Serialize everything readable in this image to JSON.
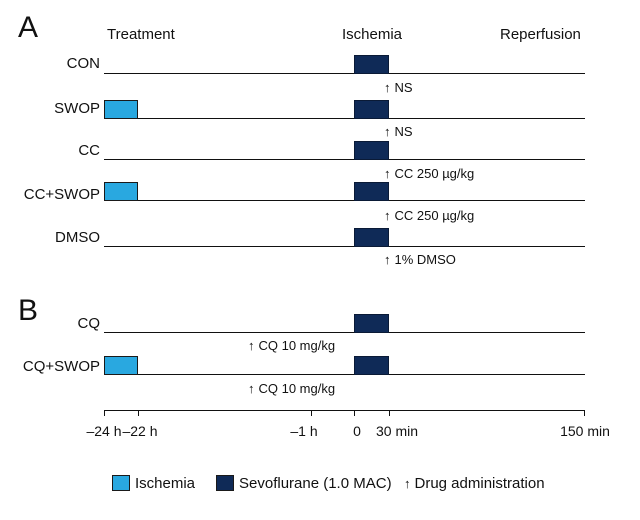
{
  "panels": {
    "a": "A",
    "b": "B"
  },
  "phases": {
    "treatment": "Treatment",
    "ischemia": "Ischemia",
    "reperfusion": "Reperfusion"
  },
  "rows": [
    {
      "label": "CON",
      "drug": "NS"
    },
    {
      "label": "SWOP",
      "drug": "NS"
    },
    {
      "label": "CC",
      "drug": "CC 250 µg/kg"
    },
    {
      "label": "CC+SWOP",
      "drug": "CC 250 µg/kg"
    },
    {
      "label": "DMSO",
      "drug": "1% DMSO"
    },
    {
      "label": "CQ",
      "drug": "CQ 10 mg/kg"
    },
    {
      "label": "CQ+SWOP",
      "drug": "CQ 10 mg/kg"
    }
  ],
  "axis": {
    "ticks": [
      "–24 h",
      "–22 h",
      "–1 h",
      "0",
      "30 min",
      "150 min"
    ]
  },
  "legend": {
    "ischemia": "Ischemia",
    "sevo": "Sevoflurane (1.0 MAC)",
    "drug": "Drug administration",
    "ischemia_color": "#29a8e0",
    "sevo_color": "#0f2a57"
  },
  "glyphs": {
    "arrow": "🡅"
  }
}
